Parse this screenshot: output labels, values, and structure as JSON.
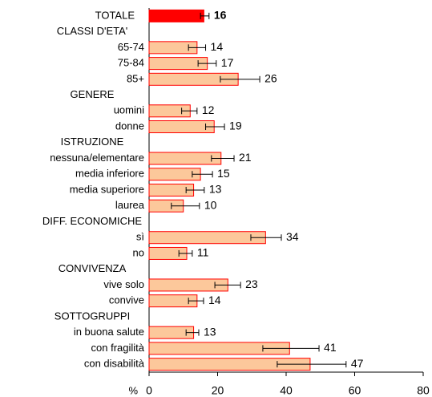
{
  "chart_data": {
    "type": "bar",
    "orientation": "horizontal",
    "categories": [
      "TOTALE",
      "CLASSI D'ETA'",
      "65-74",
      "75-84",
      "85+",
      "GENERE",
      "uomini",
      "donne",
      "ISTRUZIONE",
      "nessuna/elementare",
      "media inferiore",
      "media superiore",
      "laurea",
      "DIFF. ECONOMICHE",
      "sì",
      "no",
      "CONVIVENZA",
      "vive solo",
      "convive",
      "SOTTOGRUPPI",
      "in buona salute",
      "con fragilità",
      "con disabilità"
    ],
    "values": [
      16,
      null,
      14,
      17,
      26,
      null,
      12,
      19,
      null,
      21,
      15,
      13,
      10,
      null,
      34,
      11,
      null,
      23,
      14,
      null,
      13,
      41,
      47
    ],
    "ci_low": [
      15,
      null,
      11.5,
      14.3,
      20.8,
      null,
      9.5,
      16.5,
      null,
      18.2,
      12.6,
      10.8,
      6.5,
      null,
      29.7,
      8.7,
      null,
      19.2,
      11.5,
      null,
      10.8,
      33.2,
      37.4
    ],
    "ci_high": [
      17.5,
      null,
      16.5,
      19.6,
      32.3,
      null,
      14,
      22,
      null,
      24.8,
      18.5,
      16.1,
      14.7,
      null,
      38.6,
      12.6,
      null,
      26.7,
      15.9,
      null,
      14.5,
      49.6,
      57.5
    ],
    "color": "#fcc89b",
    "edge_color": "#ff0000",
    "highlight_color": "#ff0000",
    "highlight_index": 0,
    "x_label": "%",
    "xlim": [
      0,
      80
    ],
    "xticks": [
      0,
      20,
      40,
      60,
      80
    ]
  }
}
